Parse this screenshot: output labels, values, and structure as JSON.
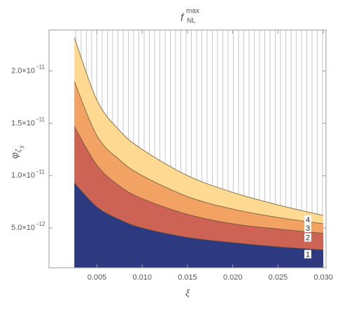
{
  "chart_data": {
    "type": "contour",
    "title": {
      "base": "f",
      "sub": "NL",
      "sup": "max"
    },
    "xlabel": "ξ",
    "ylabel": {
      "base": "φ",
      "sub": "ζ",
      "subsub": "χ"
    },
    "x": [
      0.0025,
      0.005,
      0.0075,
      0.01,
      0.015,
      0.02,
      0.025,
      0.03
    ],
    "series": [
      {
        "name": "1",
        "color": "#2e3a80",
        "values": [
          9.3e-12,
          7e-12,
          5.8e-12,
          5e-12,
          4.1e-12,
          3.6e-12,
          3.2e-12,
          2.9e-12
        ]
      },
      {
        "name": "2",
        "color": "#cd6355",
        "values": [
          1.47e-11,
          1.1e-11,
          9e-12,
          7.8e-12,
          6.3e-12,
          5.4e-12,
          4.9e-12,
          4.5e-12
        ]
      },
      {
        "name": "3",
        "color": "#f2a364",
        "values": [
          1.9e-11,
          1.38e-11,
          1.15e-11,
          1e-11,
          8e-12,
          6.8e-12,
          6e-12,
          5.4e-12
        ]
      },
      {
        "name": "4",
        "color": "#fdd992",
        "values": [
          2.32e-11,
          1.72e-11,
          1.43e-11,
          1.25e-11,
          1e-11,
          8.4e-12,
          7.2e-12,
          6.2e-12
        ]
      }
    ],
    "xlim": [
      -0.0003,
      0.0303
    ],
    "xticks": [
      0.005,
      {
        "value": 0.01,
        "label": "0.010"
      },
      0.015,
      {
        "value": 0.02,
        "label": "0.020"
      },
      0.025,
      {
        "value": 0.03,
        "label": "0.030"
      }
    ],
    "ylim": [
      1.2e-12,
      2.39e-11
    ],
    "yticks": [
      {
        "value": 5e-12,
        "label": "5.0×10",
        "exponent": "−12"
      },
      {
        "value": 1e-11,
        "label": "1.0×10",
        "exponent": "−11"
      },
      {
        "value": 1.5e-11,
        "label": "1.5×10",
        "exponent": "−11"
      },
      {
        "value": 2e-11,
        "label": "2.0×10",
        "exponent": "−11"
      }
    ]
  }
}
